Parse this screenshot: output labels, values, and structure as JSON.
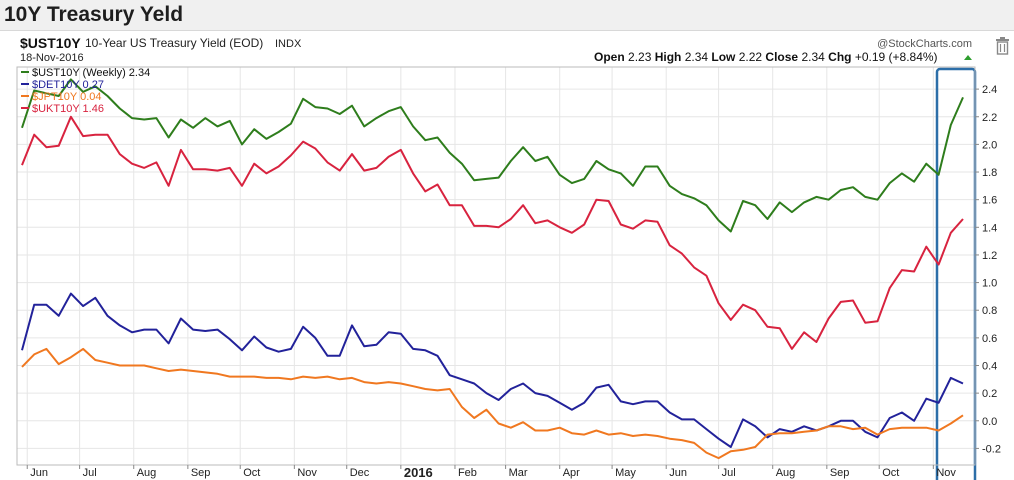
{
  "page_title": "10Y Treasury Yeld",
  "chart_header": {
    "symbol": "$UST10Y",
    "description": "10-Year US Treasury Yield (EOD)",
    "exchange": "INDX",
    "date": "18-Nov-2016",
    "watermark": "@StockCharts.com",
    "quote": [
      {
        "label": "Open",
        "value": "2.23"
      },
      {
        "label": "High",
        "value": "2.34"
      },
      {
        "label": "Low",
        "value": "2.22"
      },
      {
        "label": "Close",
        "value": "2.34"
      },
      {
        "label": "Chg",
        "value": "+0.19 (+8.84%)"
      }
    ],
    "trash_icon": "trash-icon"
  },
  "colors": {
    "UST10Y": "#2e7d1c",
    "DET10Y": "#22229a",
    "JPT10Y": "#f07820",
    "UKT10Y": "#d8233f",
    "highlight": "#2c6ea8",
    "up_arrow": "#2e9e2e"
  },
  "chart_data": {
    "type": "line",
    "x": [
      "2015-05-29",
      "2015-06-05",
      "2015-06-12",
      "2015-06-19",
      "2015-06-26",
      "2015-07-03",
      "2015-07-10",
      "2015-07-17",
      "2015-07-24",
      "2015-07-31",
      "2015-08-07",
      "2015-08-14",
      "2015-08-21",
      "2015-08-28",
      "2015-09-04",
      "2015-09-11",
      "2015-09-18",
      "2015-09-25",
      "2015-10-02",
      "2015-10-09",
      "2015-10-16",
      "2015-10-23",
      "2015-10-30",
      "2015-11-06",
      "2015-11-13",
      "2015-11-20",
      "2015-11-27",
      "2015-12-04",
      "2015-12-11",
      "2015-12-18",
      "2015-12-25",
      "2016-01-01",
      "2016-01-08",
      "2016-01-15",
      "2016-01-22",
      "2016-01-29",
      "2016-02-05",
      "2016-02-12",
      "2016-02-19",
      "2016-02-26",
      "2016-03-04",
      "2016-03-11",
      "2016-03-18",
      "2016-03-25",
      "2016-04-01",
      "2016-04-08",
      "2016-04-15",
      "2016-04-22",
      "2016-04-29",
      "2016-05-06",
      "2016-05-13",
      "2016-05-20",
      "2016-05-27",
      "2016-06-03",
      "2016-06-10",
      "2016-06-17",
      "2016-06-24",
      "2016-07-01",
      "2016-07-08",
      "2016-07-15",
      "2016-07-22",
      "2016-07-29",
      "2016-08-05",
      "2016-08-12",
      "2016-08-19",
      "2016-08-26",
      "2016-09-02",
      "2016-09-09",
      "2016-09-16",
      "2016-09-23",
      "2016-09-30",
      "2016-10-07",
      "2016-10-14",
      "2016-10-21",
      "2016-10-28",
      "2016-11-04",
      "2016-11-11",
      "2016-11-18"
    ],
    "series": [
      {
        "name": "$UST10Y (Weekly)",
        "last": "2.34",
        "key": "UST10Y",
        "values": [
          2.12,
          2.39,
          2.37,
          2.35,
          2.47,
          2.38,
          2.42,
          2.35,
          2.26,
          2.19,
          2.18,
          2.19,
          2.05,
          2.18,
          2.12,
          2.19,
          2.13,
          2.17,
          2.0,
          2.11,
          2.04,
          2.09,
          2.15,
          2.33,
          2.27,
          2.26,
          2.22,
          2.28,
          2.13,
          2.19,
          2.24,
          2.27,
          2.13,
          2.03,
          2.05,
          1.94,
          1.86,
          1.74,
          1.75,
          1.76,
          1.88,
          1.98,
          1.88,
          1.91,
          1.78,
          1.72,
          1.75,
          1.88,
          1.82,
          1.79,
          1.7,
          1.84,
          1.84,
          1.7,
          1.64,
          1.61,
          1.56,
          1.45,
          1.37,
          1.59,
          1.56,
          1.46,
          1.58,
          1.51,
          1.58,
          1.62,
          1.6,
          1.67,
          1.69,
          1.62,
          1.6,
          1.72,
          1.79,
          1.73,
          1.86,
          1.78,
          2.14,
          2.34
        ]
      },
      {
        "name": "$DET10Y",
        "last": "0.27",
        "key": "DET10Y",
        "values": [
          0.51,
          0.84,
          0.84,
          0.76,
          0.92,
          0.83,
          0.89,
          0.76,
          0.69,
          0.64,
          0.66,
          0.66,
          0.56,
          0.74,
          0.66,
          0.65,
          0.66,
          0.59,
          0.51,
          0.61,
          0.53,
          0.5,
          0.52,
          0.68,
          0.6,
          0.47,
          0.47,
          0.69,
          0.54,
          0.55,
          0.64,
          0.63,
          0.52,
          0.51,
          0.47,
          0.33,
          0.3,
          0.27,
          0.2,
          0.15,
          0.23,
          0.27,
          0.2,
          0.18,
          0.13,
          0.08,
          0.13,
          0.24,
          0.26,
          0.14,
          0.12,
          0.14,
          0.14,
          0.06,
          0.01,
          0.01,
          -0.06,
          -0.13,
          -0.19,
          0.01,
          -0.04,
          -0.12,
          -0.06,
          -0.08,
          -0.04,
          -0.07,
          -0.04,
          0.0,
          0.0,
          -0.08,
          -0.12,
          0.02,
          0.06,
          0.0,
          0.16,
          0.13,
          0.31,
          0.27
        ]
      },
      {
        "name": "$JPT10Y",
        "last": "0.04",
        "key": "JPT10Y",
        "values": [
          0.39,
          0.48,
          0.52,
          0.41,
          0.46,
          0.52,
          0.44,
          0.42,
          0.4,
          0.4,
          0.4,
          0.38,
          0.36,
          0.37,
          0.36,
          0.35,
          0.34,
          0.32,
          0.32,
          0.32,
          0.31,
          0.31,
          0.3,
          0.32,
          0.31,
          0.32,
          0.3,
          0.31,
          0.28,
          0.27,
          0.28,
          0.27,
          0.25,
          0.23,
          0.22,
          0.23,
          0.1,
          0.02,
          0.08,
          -0.02,
          -0.05,
          -0.01,
          -0.07,
          -0.07,
          -0.05,
          -0.09,
          -0.1,
          -0.07,
          -0.1,
          -0.09,
          -0.11,
          -0.1,
          -0.11,
          -0.13,
          -0.14,
          -0.16,
          -0.23,
          -0.27,
          -0.22,
          -0.21,
          -0.19,
          -0.1,
          -0.09,
          -0.09,
          -0.08,
          -0.07,
          -0.04,
          -0.04,
          -0.06,
          -0.05,
          -0.1,
          -0.06,
          -0.05,
          -0.05,
          -0.05,
          -0.07,
          -0.02,
          0.04
        ]
      },
      {
        "name": "$UKT10Y",
        "last": "1.46",
        "key": "UKT10Y",
        "values": [
          1.85,
          2.07,
          1.98,
          1.99,
          2.2,
          2.06,
          2.07,
          2.07,
          1.93,
          1.86,
          1.83,
          1.87,
          1.7,
          1.96,
          1.82,
          1.82,
          1.81,
          1.83,
          1.7,
          1.86,
          1.79,
          1.84,
          1.92,
          2.02,
          1.97,
          1.87,
          1.81,
          1.93,
          1.81,
          1.83,
          1.91,
          1.96,
          1.79,
          1.66,
          1.71,
          1.56,
          1.56,
          1.41,
          1.41,
          1.4,
          1.46,
          1.56,
          1.43,
          1.45,
          1.4,
          1.36,
          1.42,
          1.6,
          1.59,
          1.42,
          1.39,
          1.45,
          1.44,
          1.27,
          1.21,
          1.11,
          1.05,
          0.85,
          0.73,
          0.84,
          0.8,
          0.68,
          0.67,
          0.52,
          0.64,
          0.57,
          0.74,
          0.86,
          0.87,
          0.71,
          0.72,
          0.96,
          1.09,
          1.08,
          1.26,
          1.13,
          1.36,
          1.46
        ]
      }
    ],
    "y_ticks": [
      "2.4",
      "2.2",
      "2.0",
      "1.8",
      "1.6",
      "1.4",
      "1.2",
      "1.0",
      "0.8",
      "0.6",
      "0.4",
      "0.2",
      "0.0",
      "-0.2"
    ],
    "ylim": [
      -0.32,
      2.56
    ],
    "x_ticks": [
      {
        "label": "Jun",
        "date": "2015-06-01"
      },
      {
        "label": "Jul",
        "date": "2015-07-01"
      },
      {
        "label": "Aug",
        "date": "2015-08-01"
      },
      {
        "label": "Sep",
        "date": "2015-09-01"
      },
      {
        "label": "Oct",
        "date": "2015-10-01"
      },
      {
        "label": "Nov",
        "date": "2015-11-01"
      },
      {
        "label": "Dec",
        "date": "2015-12-01"
      },
      {
        "label": "2016",
        "date": "2016-01-01",
        "bold": true
      },
      {
        "label": "Feb",
        "date": "2016-02-01"
      },
      {
        "label": "Mar",
        "date": "2016-03-01"
      },
      {
        "label": "Apr",
        "date": "2016-04-01"
      },
      {
        "label": "May",
        "date": "2016-05-01"
      },
      {
        "label": "Jun",
        "date": "2016-06-01"
      },
      {
        "label": "Jul",
        "date": "2016-07-01"
      },
      {
        "label": "Aug",
        "date": "2016-08-01"
      },
      {
        "label": "Sep",
        "date": "2016-09-01"
      },
      {
        "label": "Oct",
        "date": "2016-10-01"
      },
      {
        "label": "Nov",
        "date": "2016-11-01"
      }
    ],
    "grid": true,
    "legend_placement": "top-left"
  }
}
